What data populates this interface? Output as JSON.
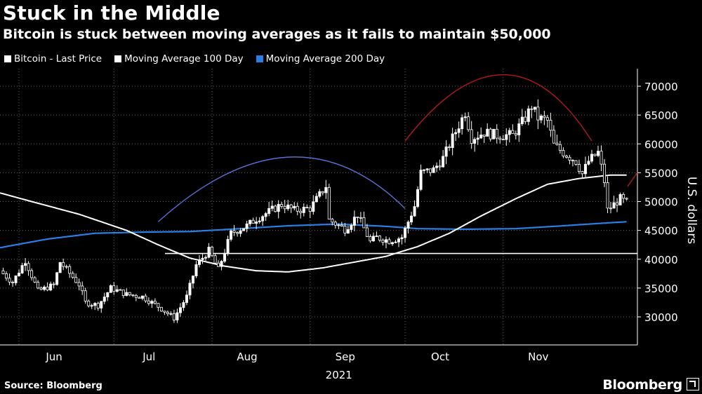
{
  "header": {
    "title": "Stuck in the Middle",
    "subtitle": "Bitcoin is stuck between moving averages as it fails to maintain $50,000"
  },
  "footer": {
    "source": "Source: Bloomberg",
    "brand": "Bloomberg"
  },
  "colors": {
    "background": "#000000",
    "price": "#ffffff",
    "ma100": "#ffffff",
    "ma200": "#2a7fe6",
    "support": "#ffffff",
    "arc_blue": "#5b6fd6",
    "arc_red": "#b3191f",
    "grid": "#666666"
  },
  "chart_data": {
    "type": "candlestick",
    "ylabel": "U.S. dollars",
    "ylim": [
      25000,
      73000
    ],
    "yticks": [
      30000,
      35000,
      40000,
      45000,
      50000,
      55000,
      60000,
      65000,
      70000
    ],
    "ytick_labels": [
      "30000",
      "35000",
      "40000",
      "45000",
      "50000",
      "55000",
      "60000",
      "65000",
      "70000"
    ],
    "x_start": "2021-05-26",
    "x_end": "2021-12-01",
    "xticks": [
      {
        "label": "Jun",
        "date": "2021-06-01"
      },
      {
        "label": "Jul",
        "date": "2021-07-01"
      },
      {
        "label": "Aug",
        "date": "2021-08-01"
      },
      {
        "label": "Sep",
        "date": "2021-09-01"
      },
      {
        "label": "Oct",
        "date": "2021-10-01"
      },
      {
        "label": "Nov",
        "date": "2021-11-01"
      }
    ],
    "year_label": {
      "label": "2021",
      "date": "2021-08-30"
    },
    "legend": [
      {
        "name": "Bitcoin - Last Price",
        "color": "#ffffff"
      },
      {
        "name": "Moving Average 100 Day",
        "color": "#ffffff"
      },
      {
        "name": "Moving Average 200 Day",
        "color": "#2a7fe6"
      }
    ],
    "price_anchors": [
      [
        "2021-05-26",
        38000
      ],
      [
        "2021-05-30",
        36000
      ],
      [
        "2021-06-03",
        39800
      ],
      [
        "2021-06-07",
        34500
      ],
      [
        "2021-06-12",
        35500
      ],
      [
        "2021-06-14",
        39500
      ],
      [
        "2021-06-20",
        35600
      ],
      [
        "2021-06-22",
        32500
      ],
      [
        "2021-06-26",
        32000
      ],
      [
        "2021-06-30",
        35000
      ],
      [
        "2021-07-05",
        33900
      ],
      [
        "2021-07-10",
        33500
      ],
      [
        "2021-07-15",
        31800
      ],
      [
        "2021-07-20",
        29800
      ],
      [
        "2021-07-24",
        33500
      ],
      [
        "2021-07-27",
        39000
      ],
      [
        "2021-07-31",
        41500
      ],
      [
        "2021-08-03",
        38200
      ],
      [
        "2021-08-07",
        44500
      ],
      [
        "2021-08-12",
        45800
      ],
      [
        "2021-08-15",
        47000
      ],
      [
        "2021-08-23",
        49500
      ],
      [
        "2021-08-27",
        48500
      ],
      [
        "2021-09-01",
        48800
      ],
      [
        "2021-09-06",
        52700
      ],
      [
        "2021-09-07",
        46800
      ],
      [
        "2021-09-12",
        45200
      ],
      [
        "2021-09-16",
        47700
      ],
      [
        "2021-09-20",
        43000
      ],
      [
        "2021-09-22",
        43800
      ],
      [
        "2021-09-26",
        43200
      ],
      [
        "2021-09-30",
        43800
      ],
      [
        "2021-10-04",
        49200
      ],
      [
        "2021-10-06",
        55000
      ],
      [
        "2021-10-10",
        55500
      ],
      [
        "2021-10-13",
        57500
      ],
      [
        "2021-10-16",
        61000
      ],
      [
        "2021-10-20",
        65500
      ],
      [
        "2021-10-22",
        61000
      ],
      [
        "2021-10-26",
        62000
      ],
      [
        "2021-10-30",
        61500
      ],
      [
        "2021-11-04",
        61500
      ],
      [
        "2021-11-08",
        64500
      ],
      [
        "2021-11-10",
        66500
      ],
      [
        "2021-11-12",
        64500
      ],
      [
        "2021-11-15",
        64000
      ],
      [
        "2021-11-17",
        59800
      ],
      [
        "2021-11-20",
        58500
      ],
      [
        "2021-11-24",
        57000
      ],
      [
        "2021-11-26",
        54800
      ],
      [
        "2021-11-28",
        57000
      ],
      [
        "2021-12-01",
        58500
      ],
      [
        "2021-12-03",
        53500
      ],
      [
        "2021-12-04",
        48500
      ],
      [
        "2021-12-06",
        49500
      ],
      [
        "2021-12-08",
        50500
      ],
      [
        "2021-12-10",
        49800
      ]
    ],
    "ma100_anchors": [
      [
        "2021-05-26",
        51500
      ],
      [
        "2021-06-05",
        50000
      ],
      [
        "2021-06-20",
        47800
      ],
      [
        "2021-07-05",
        45000
      ],
      [
        "2021-07-15",
        42500
      ],
      [
        "2021-07-25",
        40200
      ],
      [
        "2021-08-05",
        38800
      ],
      [
        "2021-08-15",
        38000
      ],
      [
        "2021-08-25",
        37800
      ],
      [
        "2021-09-05",
        38500
      ],
      [
        "2021-09-15",
        39500
      ],
      [
        "2021-09-25",
        40500
      ],
      [
        "2021-10-05",
        42200
      ],
      [
        "2021-10-15",
        44500
      ],
      [
        "2021-10-25",
        47500
      ],
      [
        "2021-11-05",
        50500
      ],
      [
        "2021-11-15",
        53000
      ],
      [
        "2021-11-25",
        54000
      ],
      [
        "2021-12-05",
        54600
      ],
      [
        "2021-12-10",
        54600
      ]
    ],
    "ma200_anchors": [
      [
        "2021-05-26",
        42000
      ],
      [
        "2021-06-10",
        43500
      ],
      [
        "2021-06-25",
        44500
      ],
      [
        "2021-07-10",
        44700
      ],
      [
        "2021-07-25",
        44800
      ],
      [
        "2021-08-10",
        45300
      ],
      [
        "2021-08-25",
        45800
      ],
      [
        "2021-09-10",
        46100
      ],
      [
        "2021-09-25",
        45700
      ],
      [
        "2021-10-05",
        45300
      ],
      [
        "2021-10-20",
        45200
      ],
      [
        "2021-11-05",
        45300
      ],
      [
        "2021-11-20",
        45800
      ],
      [
        "2021-12-01",
        46200
      ],
      [
        "2021-12-10",
        46500
      ]
    ],
    "support_level": 41000,
    "arcs": [
      {
        "color": "blue",
        "points": [
          [
            "2021-07-15",
            46500
          ],
          [
            "2021-08-25",
            57700
          ],
          [
            "2021-10-01",
            48800
          ]
        ]
      },
      {
        "color": "red",
        "points": [
          [
            "2021-10-01",
            60500
          ],
          [
            "2021-11-01",
            72000
          ],
          [
            "2021-11-29",
            60500
          ]
        ]
      }
    ]
  }
}
